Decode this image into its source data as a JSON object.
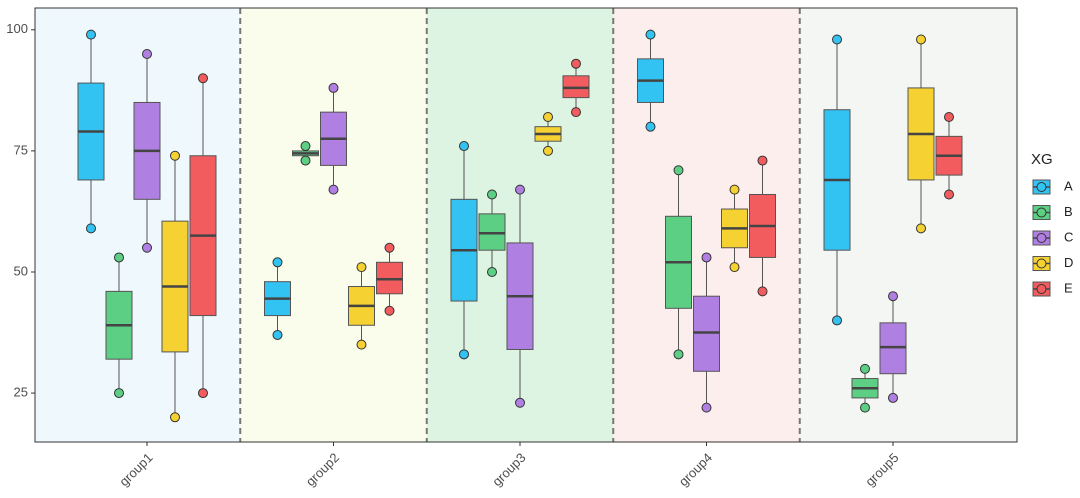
{
  "chart_data": {
    "type": "box",
    "categories": [
      "group1",
      "group2",
      "group3",
      "group4",
      "group5"
    ],
    "category_backgrounds": [
      "#eff8fc",
      "#fafdec",
      "#dcf4e1",
      "#fdeeee",
      "#f4f6f4"
    ],
    "ylim": [
      14.9,
      104.5
    ],
    "yticks": [
      25,
      50,
      75,
      100
    ],
    "grid": false,
    "legend_title": "XG",
    "legend": "right",
    "series": [
      {
        "name": "A",
        "color": "#33c3f2",
        "low": [
          59,
          37,
          33,
          80,
          40
        ],
        "q1": [
          69,
          41,
          44,
          85,
          54.5
        ],
        "median": [
          79,
          44.5,
          54.5,
          89.5,
          69
        ],
        "q3": [
          89,
          48,
          65,
          94,
          83.5
        ],
        "high": [
          99,
          52,
          76,
          99,
          98
        ]
      },
      {
        "name": "B",
        "color": "#5ccf84",
        "low": [
          25,
          73,
          50,
          33,
          22
        ],
        "q1": [
          32,
          74,
          54.5,
          42.5,
          24
        ],
        "median": [
          39,
          74.5,
          58,
          52,
          26
        ],
        "q3": [
          46,
          75,
          62,
          61.5,
          28
        ],
        "high": [
          53,
          76,
          66,
          71,
          30
        ]
      },
      {
        "name": "C",
        "color": "#b07fe2",
        "low": [
          55,
          67,
          23,
          22,
          24
        ],
        "q1": [
          65,
          72,
          34,
          29.5,
          29
        ],
        "median": [
          75,
          77.5,
          45,
          37.5,
          34.5
        ],
        "q3": [
          85,
          83,
          56,
          45,
          39.5
        ],
        "high": [
          95,
          88,
          67,
          53,
          45
        ]
      },
      {
        "name": "D",
        "color": "#f5d132",
        "low": [
          20,
          35,
          75,
          51,
          59
        ],
        "q1": [
          33.5,
          39,
          77,
          55,
          69
        ],
        "median": [
          47,
          43,
          78.5,
          59,
          78.5
        ],
        "q3": [
          60.5,
          47,
          80,
          63,
          88
        ],
        "high": [
          74,
          51,
          82,
          67,
          98
        ]
      },
      {
        "name": "E",
        "color": "#f25c5e",
        "low": [
          25,
          42,
          83,
          46,
          66
        ],
        "q1": [
          41,
          45.5,
          86,
          53,
          70
        ],
        "median": [
          57.5,
          48.5,
          88,
          59.5,
          74
        ],
        "q3": [
          74,
          52,
          90.5,
          66,
          78
        ],
        "high": [
          90,
          55,
          93,
          73,
          82
        ]
      }
    ]
  }
}
